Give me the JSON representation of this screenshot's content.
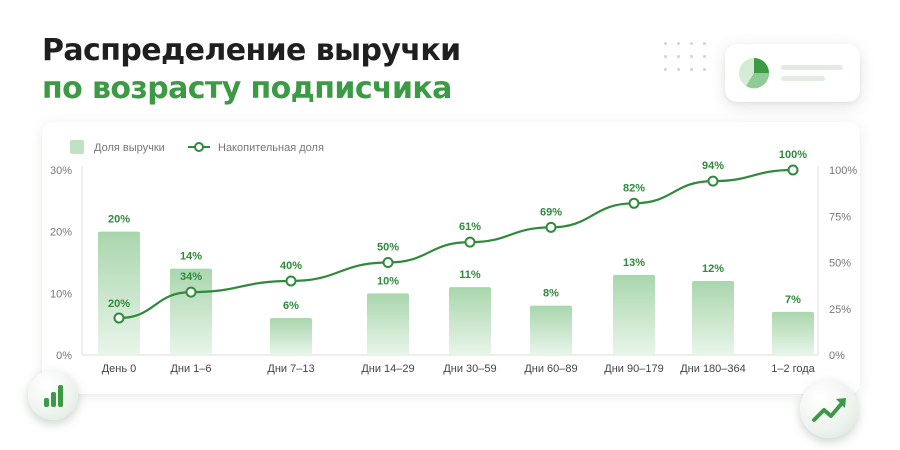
{
  "header": {
    "title_line1": "Распределение выручки",
    "title_line2": "по возрасту подписчика"
  },
  "decor": {
    "pie_icon": "pie-chart-icon",
    "bars_icon": "bar-chart-icon",
    "trend_icon": "trend-up-icon"
  },
  "colors": {
    "accent": "#3c9a45",
    "line": "#2f8a3b",
    "bar_top": "#a9d6ad",
    "bar_bottom": "#e9f5ea",
    "title": "#1f1f1f"
  },
  "chart_data": {
    "type": "bar",
    "categories": [
      "День 0",
      "Дни 1–6",
      "Дни 7–13",
      "Дни 14–29",
      "Дни 30–59",
      "Дни 60–89",
      "Дни 90–179",
      "Дни 180–364",
      "1–2 года"
    ],
    "series": [
      {
        "name": "Доля выручки",
        "type": "bar",
        "axis": "left",
        "values": [
          20,
          14,
          6,
          10,
          11,
          8,
          13,
          12,
          7
        ],
        "labels": [
          "20%",
          "14%",
          "6%",
          "10%",
          "11%",
          "8%",
          "13%",
          "12%",
          "7%"
        ]
      },
      {
        "name": "Накопительная доля",
        "type": "line",
        "axis": "right",
        "values": [
          20,
          34,
          40,
          50,
          61,
          69,
          82,
          94,
          100
        ],
        "labels": [
          "20%",
          "34%",
          "40%",
          "50%",
          "61%",
          "69%",
          "82%",
          "94%",
          "100%"
        ]
      }
    ],
    "y_left": {
      "range": [
        0,
        30
      ],
      "ticks": [
        0,
        10,
        20,
        30
      ],
      "tick_labels": [
        "0%",
        "10%",
        "20%",
        "30%"
      ]
    },
    "y_right": {
      "range": [
        0,
        100
      ],
      "ticks": [
        0,
        25,
        50,
        75,
        100
      ],
      "tick_labels": [
        "0%",
        "25%",
        "50%",
        "75%",
        "100%"
      ]
    },
    "legend_position": "top-left",
    "grid": false
  }
}
